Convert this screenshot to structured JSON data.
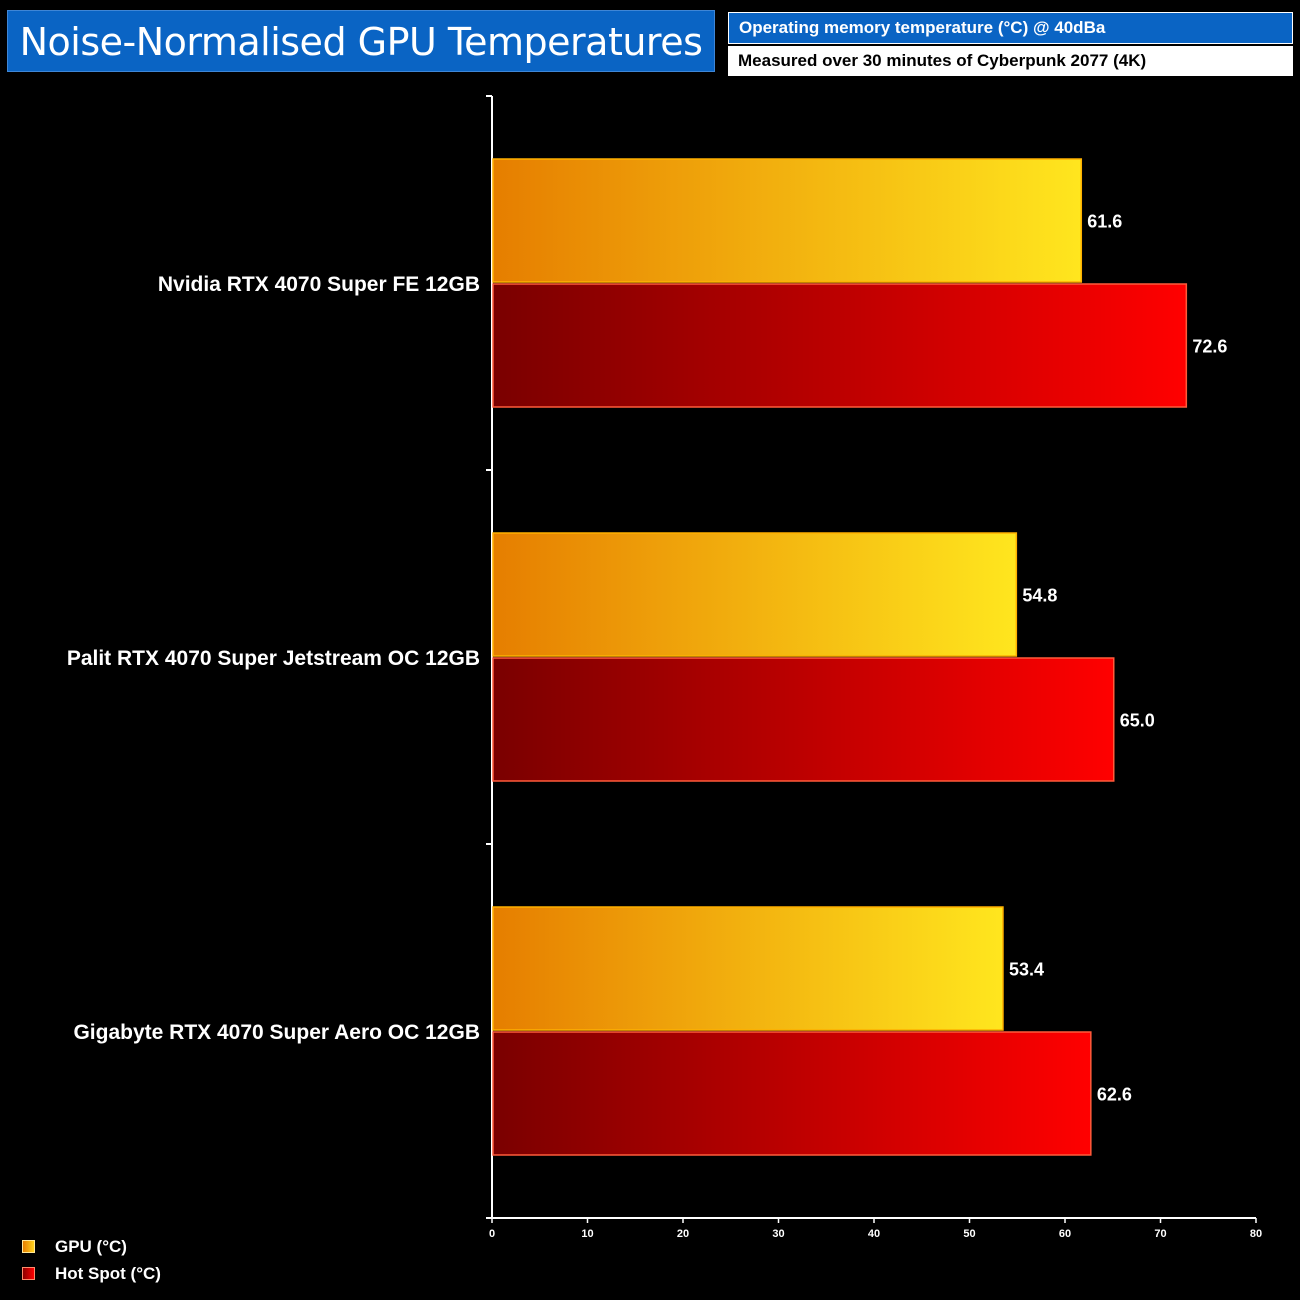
{
  "header": {
    "title": "Noise-Normalised GPU Temperatures",
    "subtitle1": "Operating memory temperature (°C) @ 40dBa",
    "subtitle2": "Measured over 30 minutes of Cyberpunk 2077 (4K)"
  },
  "colors": {
    "background": "#000000",
    "title_bg": "#0a64c4",
    "gpu_start": "#e67e00",
    "gpu_end": "#ffe61e",
    "hotspot_start": "#7a0000",
    "hotspot_end": "#ff0000"
  },
  "chart_data": {
    "type": "bar",
    "orientation": "horizontal",
    "title": "Noise-Normalised GPU Temperatures",
    "categories": [
      "Nvidia RTX 4070 Super FE 12GB",
      "Palit RTX 4070 Super Jetstream OC 12GB",
      "Gigabyte RTX 4070 Super Aero OC 12GB"
    ],
    "series": [
      {
        "name": "GPU (°C)",
        "values": [
          61.6,
          54.8,
          53.4
        ]
      },
      {
        "name": "Hot Spot (°C)",
        "values": [
          72.6,
          65.0,
          62.6
        ]
      }
    ],
    "value_labels": [
      [
        "61.6",
        "54.8",
        "53.4"
      ],
      [
        "72.6",
        "65.0",
        "62.6"
      ]
    ],
    "xlim": [
      0,
      80
    ],
    "xticks": [
      "0",
      "10",
      "20",
      "30",
      "40",
      "50",
      "60",
      "70",
      "80"
    ],
    "xlabel": "",
    "ylabel": "",
    "legend_position": "bottom-left",
    "grid": false
  }
}
